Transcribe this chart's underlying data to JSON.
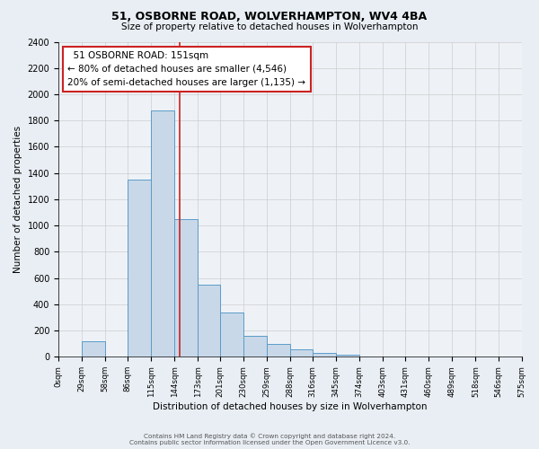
{
  "title": "51, OSBORNE ROAD, WOLVERHAMPTON, WV4 4BA",
  "subtitle": "Size of property relative to detached houses in Wolverhampton",
  "xlabel": "Distribution of detached houses by size in Wolverhampton",
  "ylabel": "Number of detached properties",
  "bin_edges": [
    0,
    29,
    58,
    86,
    115,
    144,
    173,
    201,
    230,
    259,
    288,
    316,
    345,
    374,
    403,
    431,
    460,
    489,
    518,
    546,
    575
  ],
  "bar_heights": [
    0,
    120,
    0,
    1350,
    1880,
    1050,
    550,
    335,
    160,
    100,
    55,
    30,
    15,
    5,
    2,
    1,
    0,
    0,
    0,
    5
  ],
  "bar_color": "#c8d8e8",
  "bar_edgecolor": "#5b9bc8",
  "bar_linewidth": 0.7,
  "vline_x": 151,
  "vline_color": "#cc2222",
  "vline_linewidth": 1.2,
  "ylim": [
    0,
    2400
  ],
  "yticks": [
    0,
    200,
    400,
    600,
    800,
    1000,
    1200,
    1400,
    1600,
    1800,
    2000,
    2200,
    2400
  ],
  "tick_labels": [
    "0sqm",
    "29sqm",
    "58sqm",
    "86sqm",
    "115sqm",
    "144sqm",
    "173sqm",
    "201sqm",
    "230sqm",
    "259sqm",
    "288sqm",
    "316sqm",
    "345sqm",
    "374sqm",
    "403sqm",
    "431sqm",
    "460sqm",
    "489sqm",
    "518sqm",
    "546sqm",
    "575sqm"
  ],
  "annotation_line1": "  51 OSBORNE ROAD: 151sqm",
  "annotation_line2": "← 80% of detached houses are smaller (4,546)",
  "annotation_line3": "20% of semi-detached houses are larger (1,135) →",
  "footer_line1": "Contains HM Land Registry data © Crown copyright and database right 2024.",
  "footer_line2": "Contains public sector information licensed under the Open Government Licence v3.0.",
  "grid_color": "#cccccc",
  "background_color": "#e8eef4",
  "plot_background": "#eef2f7",
  "title_fontsize": 9,
  "subtitle_fontsize": 7.5,
  "ylabel_fontsize": 7.5,
  "xlabel_fontsize": 7.5,
  "tick_fontsize": 6.2,
  "ytick_fontsize": 7,
  "footer_fontsize": 5.2,
  "annot_fontsize": 7.5
}
